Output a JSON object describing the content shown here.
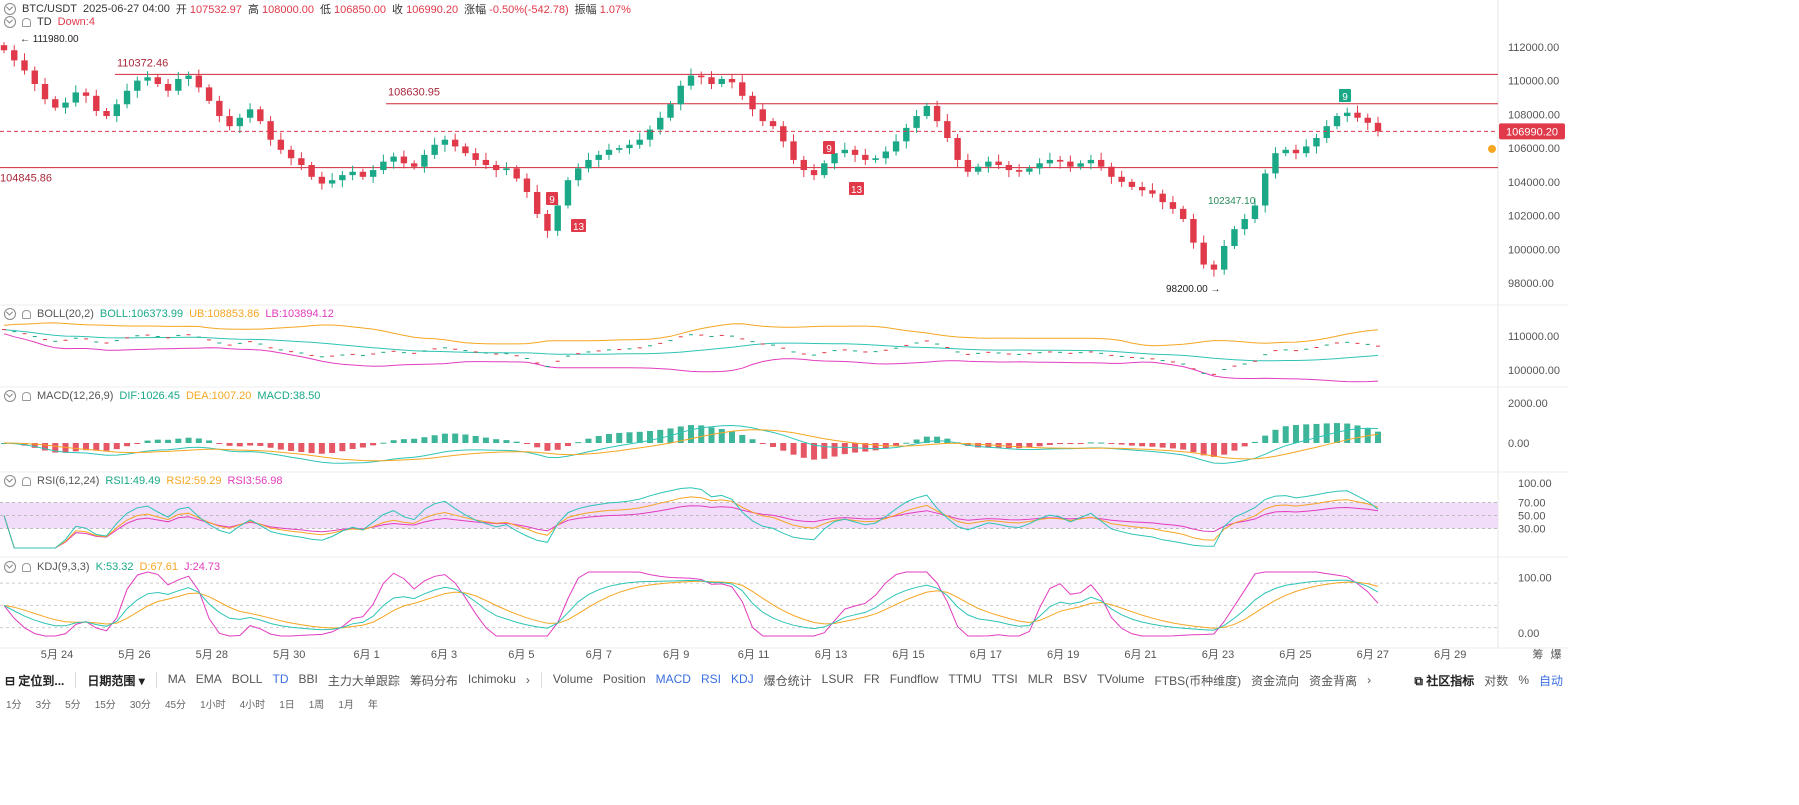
{
  "header": {
    "symbol": "BTC/USDT",
    "datetime": "2025-06-27 04:00",
    "open_label": "开",
    "open": "107532.97",
    "high_label": "高",
    "high": "108000.00",
    "low_label": "低",
    "low": "106850.00",
    "close_label": "收",
    "close": "106990.20",
    "change_label": "涨幅",
    "change": "-0.50%(-542.78)",
    "amp_label": "振幅",
    "amp": "1.07%",
    "td_name": "TD",
    "td_value": "Down:4"
  },
  "indicators": {
    "boll": {
      "name": "BOLL(20,2)",
      "mid": "BOLL:106373.99",
      "ub": "UB:108853.86",
      "lb": "LB:103894.12"
    },
    "macd": {
      "name": "MACD(12,26,9)",
      "dif": "DIF:1026.45",
      "dea": "DEA:1007.20",
      "macd": "MACD:38.50"
    },
    "rsi": {
      "name": "RSI(6,12,24)",
      "r1": "RSI1:49.49",
      "r2": "RSI2:59.29",
      "r3": "RSI3:56.98"
    },
    "kdj": {
      "name": "KDJ(9,3,3)",
      "k": "K:53.32",
      "d": "D:67.61",
      "j": "J:24.73"
    }
  },
  "chart_data": {
    "type": "candlestick",
    "symbol": "BTC/USDT",
    "price_axis_ticks": [
      "112000.00",
      "110000.00",
      "108000.00",
      "106000.00",
      "104000.00",
      "102000.00",
      "100000.00",
      "98000.00"
    ],
    "date_ticks": [
      "5月 24",
      "5月 26",
      "5月 28",
      "5月 30",
      "6月 1",
      "6月 3",
      "6月 5",
      "6月 7",
      "6月 9",
      "6月 11",
      "6月 13",
      "6月 15",
      "6月 17",
      "6月 19",
      "6月 21",
      "6月 23",
      "6月 25",
      "6月 27",
      "6月 29"
    ],
    "last_price": "106990.20",
    "annotations": {
      "high_marker": "111980.00",
      "low_marker": "98200.00",
      "level_marker": "102347.10",
      "h_lines": [
        {
          "value": 110372.46,
          "label": "110372.46"
        },
        {
          "value": 108630.95,
          "label": "108630.95"
        },
        {
          "value": 104845.86,
          "label": "104845.86"
        }
      ],
      "td_marks": [
        {
          "label": "9",
          "color": "#e0394a"
        },
        {
          "label": "13",
          "color": "#e0394a"
        },
        {
          "label": "9",
          "color": "#e0394a"
        },
        {
          "label": "13",
          "color": "#e0394a"
        },
        {
          "label": "9",
          "color": "#1aa887"
        }
      ]
    },
    "close_series_approx": [
      111800,
      111200,
      110600,
      109800,
      108900,
      108400,
      108700,
      109300,
      109100,
      108200,
      107900,
      108600,
      109400,
      110000,
      110200,
      109800,
      109400,
      110100,
      110300,
      109600,
      108800,
      107900,
      107300,
      107800,
      108300,
      107600,
      106500,
      105900,
      105400,
      105000,
      104300,
      103900,
      104100,
      104400,
      104600,
      104300,
      104700,
      105200,
      105500,
      105100,
      104900,
      105600,
      106200,
      106500,
      106100,
      105700,
      105300,
      105000,
      104700,
      104800,
      104200,
      103400,
      102100,
      101100,
      102600,
      104100,
      104800,
      105300,
      105600,
      105900,
      106000,
      106200,
      106500,
      107100,
      107800,
      108600,
      109700,
      110300,
      110200,
      109800,
      110100,
      109900,
      109100,
      108300,
      107600,
      107300,
      106400,
      105300,
      104700,
      104400,
      105100,
      105700,
      105900,
      105600,
      105300,
      105400,
      105800,
      106400,
      107200,
      107900,
      108500,
      107600,
      106600,
      105300,
      104600,
      104900,
      105200,
      105000,
      104700,
      104600,
      104800,
      105100,
      105300,
      105200,
      104900,
      105100,
      105300,
      104900,
      104300,
      104000,
      103700,
      103500,
      103300,
      102800,
      102400,
      101800,
      100400,
      99100,
      98800,
      100200,
      101200,
      101800,
      102600,
      104500,
      105700,
      105900,
      105700,
      106100,
      106600,
      107300,
      107900,
      108100,
      107800,
      107500,
      107000
    ],
    "boll_axis_ticks": [
      "110000.00",
      "100000.00"
    ],
    "macd_axis_ticks": [
      "2000.00",
      "0.00"
    ],
    "rsi_axis_ticks": [
      "100.00",
      "70.00",
      "50.00",
      "30.00"
    ],
    "kdj_axis_ticks": [
      "100.00",
      "0.00"
    ]
  },
  "colors": {
    "up": "#1aa887",
    "down": "#e0394a",
    "ub": "#f5a623",
    "lb": "#e33cbf",
    "mid": "#2ec4b6"
  },
  "toolbar": {
    "locate": "定位到...",
    "date_range": "日期范围",
    "main_ind": [
      "MA",
      "EMA",
      "BOLL",
      "TD",
      "BBI",
      "主力大单跟踪",
      "筹码分布",
      "Ichimoku"
    ],
    "sub_ind": [
      "Volume",
      "Position",
      "MACD",
      "RSI",
      "KDJ",
      "爆仓统计",
      "LSUR",
      "FR",
      "Fundflow",
      "TTMU",
      "TTSI",
      "MLR",
      "BSV",
      "TVolume",
      "FTBS(币种维度)",
      "资金流向",
      "资金背离"
    ],
    "community": "社区指标",
    "log": "对数",
    "pct": "%",
    "auto": "自动",
    "axis_chars": [
      "筹",
      "爆"
    ]
  },
  "timeframes": [
    "1分",
    "3分",
    "5分",
    "15分",
    "30分",
    "45分",
    "1小时",
    "4小时",
    "1日",
    "1周",
    "1月",
    "年"
  ]
}
